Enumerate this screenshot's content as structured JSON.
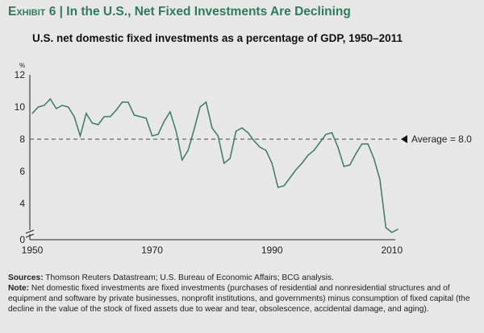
{
  "header": {
    "exhibit": "Exhibit 6",
    "separator": "|",
    "title": "In the U.S., Net Fixed Investments Are Declining"
  },
  "colors": {
    "title": "#2f7b5b",
    "line": "#3d7a63",
    "average_line": "#666666",
    "background": "#e6e7e6"
  },
  "chart_data": {
    "type": "line",
    "title": "U.S. net domestic fixed investments as a percentage of GDP, 1950–2011",
    "ylabel": "%",
    "xlabel": "",
    "x_ticks": [
      "1950",
      "1970",
      "1990",
      "2010"
    ],
    "y_ticks": [
      "0",
      "4",
      "6",
      "8",
      "10",
      "12"
    ],
    "ylim": [
      0,
      12
    ],
    "y_axis_break": true,
    "grid": false,
    "series": [
      {
        "x": [
          1950,
          1951,
          1952,
          1953,
          1954,
          1955,
          1956,
          1957,
          1958,
          1959,
          1960,
          1961,
          1962,
          1963,
          1964,
          1965,
          1966,
          1967,
          1968,
          1969,
          1970,
          1971,
          1972,
          1973,
          1974,
          1975,
          1976,
          1977,
          1978,
          1979,
          1980,
          1981,
          1982,
          1983,
          1984,
          1985,
          1986,
          1987,
          1988,
          1989,
          1990,
          1991,
          1992,
          1993,
          1994,
          1995,
          1996,
          1997,
          1998,
          1999,
          2000,
          2001,
          2002,
          2003,
          2004,
          2005,
          2006,
          2007,
          2008,
          2009,
          2010,
          2011
        ],
        "values": [
          9.6,
          10.0,
          10.1,
          10.5,
          9.9,
          10.1,
          10.0,
          9.4,
          8.2,
          9.6,
          9.0,
          8.9,
          9.4,
          9.4,
          9.8,
          10.3,
          10.3,
          9.5,
          9.4,
          9.3,
          8.2,
          8.3,
          9.1,
          9.7,
          8.5,
          6.7,
          7.3,
          8.6,
          10.0,
          10.3,
          8.7,
          8.2,
          6.5,
          6.8,
          8.5,
          8.7,
          8.4,
          7.9,
          7.5,
          7.3,
          6.5,
          5.0,
          5.1,
          5.6,
          6.1,
          6.5,
          7.0,
          7.3,
          7.8,
          8.3,
          8.4,
          7.5,
          6.3,
          6.4,
          7.1,
          7.7,
          7.7,
          6.8,
          5.5,
          2.5,
          2.2,
          2.4
        ]
      }
    ],
    "average": {
      "value": 8.0,
      "label": "Average = 8.0"
    }
  },
  "notes": {
    "sources_label": "Sources:",
    "sources": "Thomson Reuters Datastream; U.S. Bureau of Economic Affairs; BCG analysis.",
    "note_label": "Note:",
    "note": "Net domestic fixed investments are fixed investments (purchases of residential and nonresidential structures and of equipment and software by private businesses, nonprofit institutions, and governments) minus consumption of fixed capital (the decline in the value of the stock of fixed assets due to wear and tear, obsolescence, accidental damage, and aging)."
  }
}
